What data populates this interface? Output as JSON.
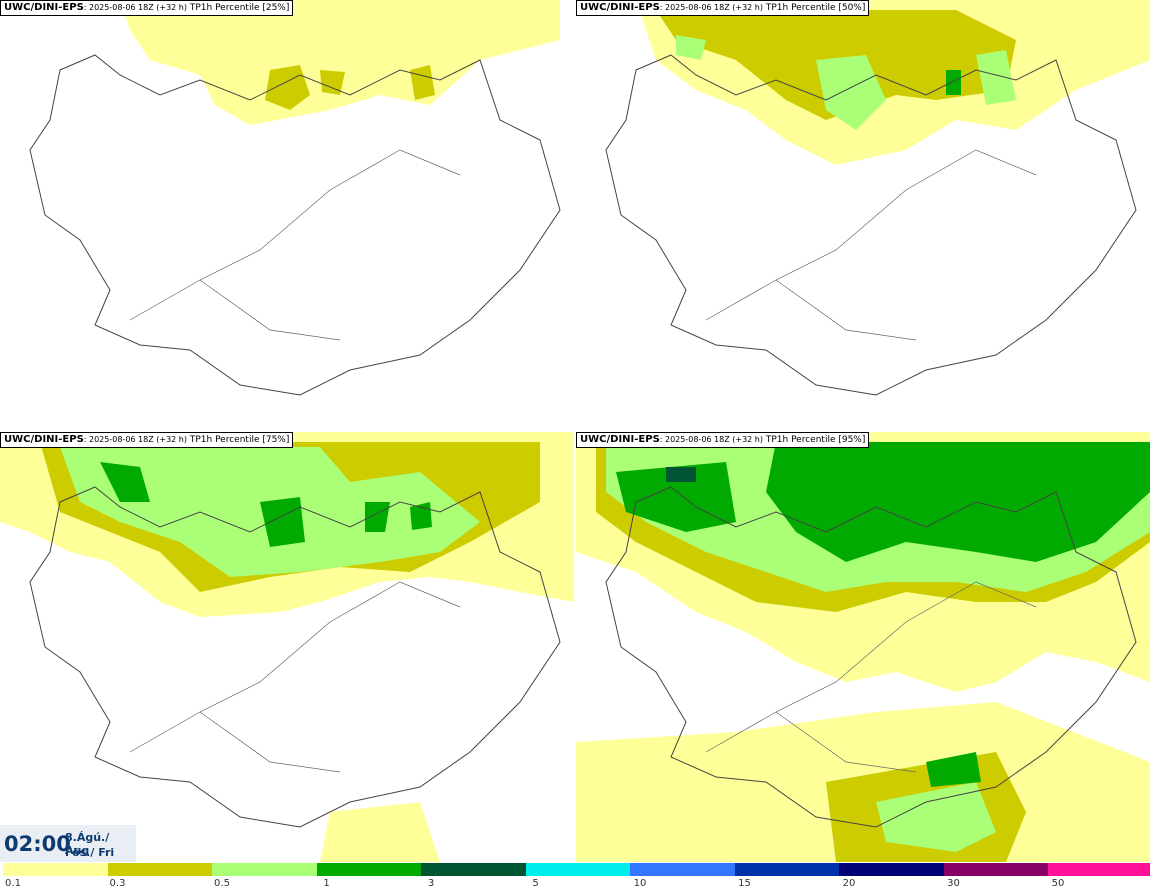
{
  "panels": [
    {
      "model": "UWC/DINI-EPS",
      "run": ": 2025-08-06 18Z (+32 h)",
      "field": "TP1h Percentile [25%]"
    },
    {
      "model": "UWC/DINI-EPS",
      "run": ": 2025-08-06 18Z (+32 h)",
      "field": "TP1h Percentile [50%]"
    },
    {
      "model": "UWC/DINI-EPS",
      "run": ": 2025-08-06 18Z (+32 h)",
      "field": "TP1h Percentile [75%]"
    },
    {
      "model": "UWC/DINI-EPS",
      "run": ": 2025-08-06 18Z (+32 h)",
      "field": "TP1h Percentile [95%]"
    }
  ],
  "valid_time": {
    "time": "02:00",
    "date_line1": "8.Ágú./ Aug",
    "date_line2": "Fös./ Fri"
  },
  "legend": {
    "colors": [
      "#ffff99",
      "#cccc00",
      "#aaff77",
      "#00aa00",
      "#005533",
      "#00eeee",
      "#3377ff",
      "#0033aa",
      "#000077",
      "#880066",
      "#ff1199",
      "#ff0022"
    ],
    "labels": [
      "0.1",
      "0.3",
      "0.5",
      "1",
      "3",
      "5",
      "10",
      "15",
      "20",
      "30",
      "50"
    ]
  }
}
